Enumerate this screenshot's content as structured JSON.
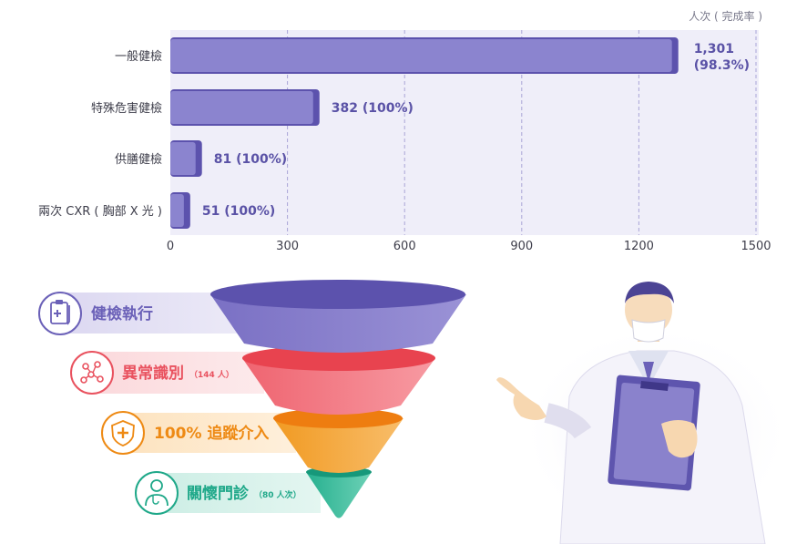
{
  "chart_data": {
    "type": "bar",
    "orientation": "horizontal",
    "unit_label": "人次 ( 完成率 )",
    "categories": [
      "一般健檢",
      "特殊危害健檢",
      "供膳健檢",
      "兩次 CXR ( 胸部 X 光 )"
    ],
    "values": [
      1301,
      382,
      81,
      51
    ],
    "data_labels": [
      {
        "line1": "1,301",
        "line2": "(98.3%)"
      },
      {
        "line1": "382 (100%)"
      },
      {
        "line1": "81 (100%)"
      },
      {
        "line1": "51 (100%)"
      }
    ],
    "xlim": [
      0,
      1500
    ],
    "x_ticks": [
      "0",
      "300",
      "600",
      "900",
      "1200",
      "1500"
    ],
    "grid": true
  },
  "funnel": {
    "stages": [
      {
        "label": "健檢執行",
        "note": "",
        "color": "#6b61b8",
        "light": "#e0ddf3",
        "icon": "clipboard-medical-icon"
      },
      {
        "label": "異常識別",
        "note": "（144 人）",
        "color": "#e9525f",
        "light": "#fbdde0",
        "icon": "molecule-icon"
      },
      {
        "label": "100% 追蹤介入",
        "note": "",
        "color": "#ee8a14",
        "light": "#fde7c6",
        "icon": "shield-cross-icon"
      },
      {
        "label": "關懷門診",
        "note": "（80 人次）",
        "color": "#1fa889",
        "light": "#d2f0e8",
        "icon": "doctor-icon"
      }
    ]
  }
}
